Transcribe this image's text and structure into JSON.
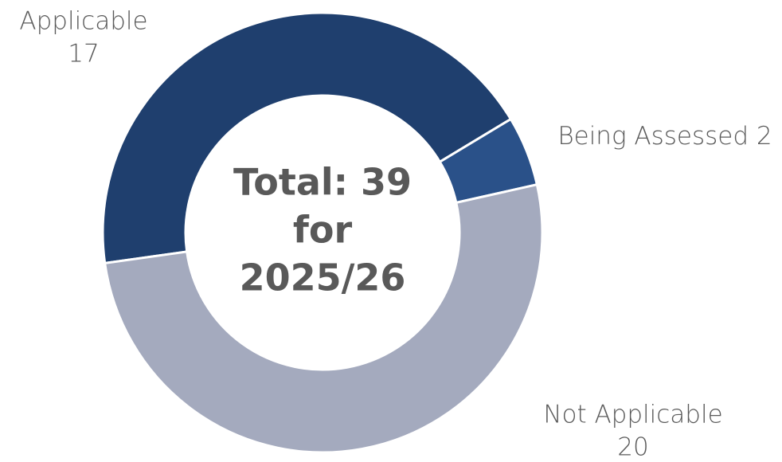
{
  "chart_data": {
    "type": "donut",
    "categories": [
      "Applicable",
      "Being Assessed",
      "Not Applicable"
    ],
    "values": [
      17,
      2,
      20
    ],
    "colors": [
      "#1f3f6e",
      "#2a5189",
      "#a4aabe"
    ],
    "center_text": [
      "Total: 39",
      "for",
      "2025/26"
    ]
  }
}
